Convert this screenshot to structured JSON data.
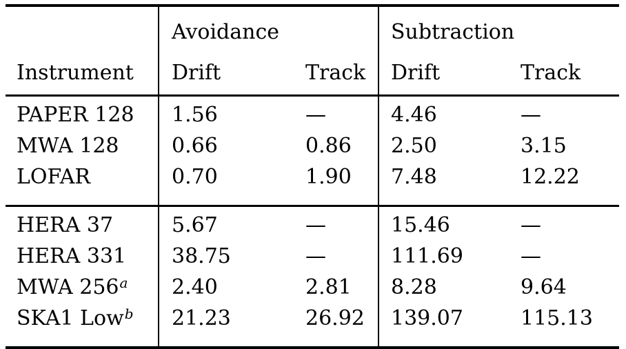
{
  "colors": {
    "text": "#000000",
    "background": "#ffffff",
    "rule": "#000000"
  },
  "table": {
    "header": {
      "instrument": "Instrument",
      "groups": [
        {
          "label": "Avoidance",
          "drift": "Drift",
          "track": "Track"
        },
        {
          "label": "Subtraction",
          "drift": "Drift",
          "track": "Track"
        }
      ]
    },
    "blocks": [
      {
        "rows": [
          {
            "name": "PAPER 128",
            "sup": "",
            "values": [
              "1.56",
              "—",
              "4.46",
              "—"
            ]
          },
          {
            "name": "MWA 128",
            "sup": "",
            "values": [
              "0.66",
              "0.86",
              "2.50",
              "3.15"
            ]
          },
          {
            "name": "LOFAR",
            "sup": "",
            "values": [
              "0.70",
              "1.90",
              "7.48",
              "12.22"
            ]
          }
        ]
      },
      {
        "rows": [
          {
            "name": "HERA 37",
            "sup": "",
            "values": [
              "5.67",
              "—",
              "15.46",
              "—"
            ]
          },
          {
            "name": "HERA 331",
            "sup": "",
            "values": [
              "38.75",
              "—",
              "111.69",
              "—"
            ]
          },
          {
            "name": "MWA 256",
            "sup": "a",
            "values": [
              "2.40",
              "2.81",
              "8.28",
              "9.64"
            ]
          },
          {
            "name": "SKA1 Low",
            "sup": "b",
            "values": [
              "21.23",
              "26.92",
              "139.07",
              "115.13"
            ]
          }
        ]
      }
    ]
  }
}
